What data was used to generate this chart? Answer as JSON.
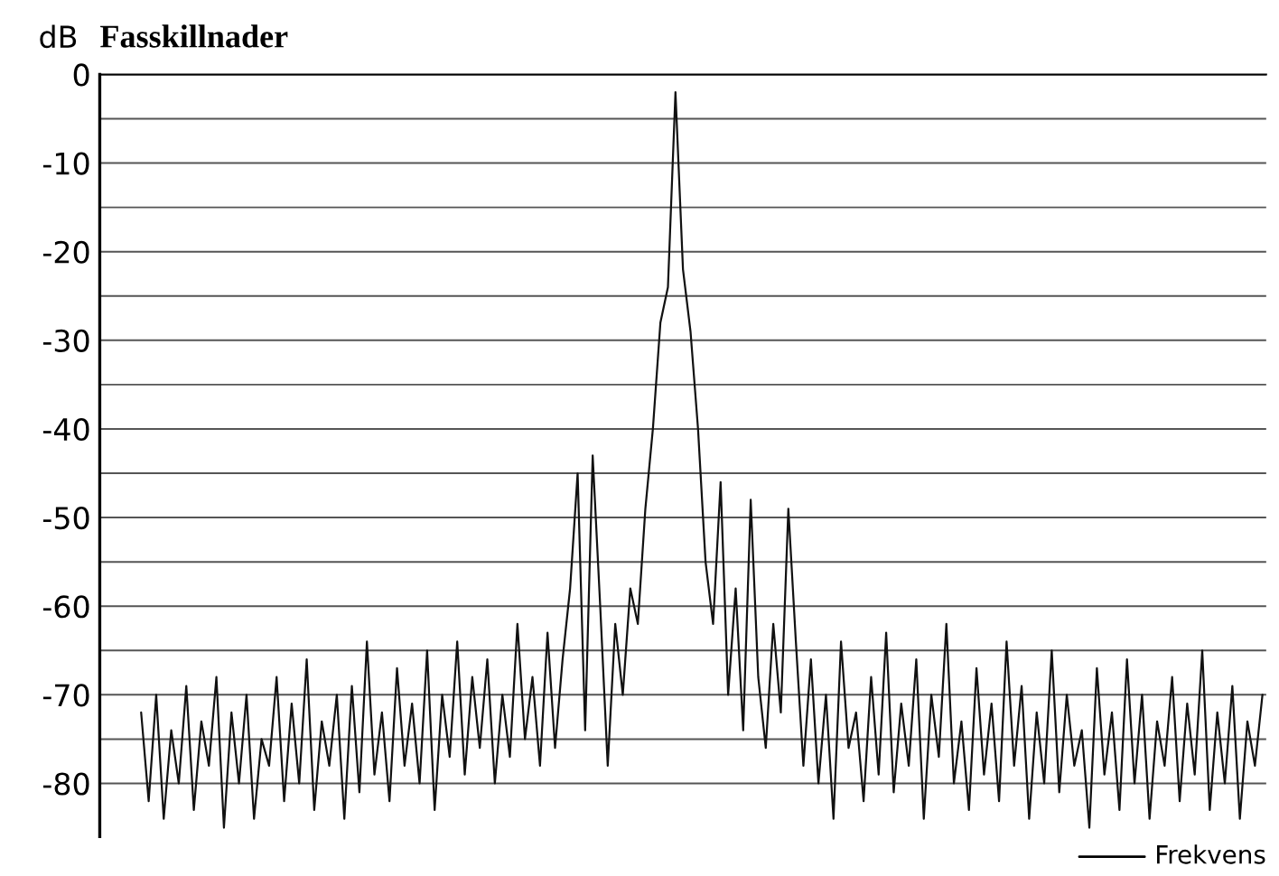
{
  "chart_data": {
    "type": "line",
    "title": "Fasskillnader",
    "ylabel": "dB",
    "annotations": [
      "Frekvens"
    ],
    "categories": [
      null,
      null,
      null,
      null,
      null,
      null,
      null,
      null,
      null,
      null,
      null,
      null,
      null,
      null,
      null,
      null,
      null,
      null,
      null,
      null,
      null,
      null,
      null,
      null,
      null,
      null,
      null,
      null,
      null,
      null,
      null,
      null,
      null,
      null,
      null,
      null,
      null,
      null,
      null,
      null,
      null,
      null,
      null,
      null,
      null,
      null,
      null,
      null,
      null,
      null,
      null,
      null,
      null,
      null,
      null,
      null,
      null,
      null,
      null,
      null,
      null,
      null,
      null,
      null,
      null,
      null,
      null,
      null,
      null,
      null,
      null,
      null,
      null,
      null,
      null,
      null,
      null,
      null,
      null,
      null,
      null,
      null,
      null,
      null,
      null,
      null,
      null,
      null,
      null,
      null,
      null,
      null,
      null,
      null,
      null,
      null,
      null,
      null,
      null,
      null,
      null,
      null,
      null,
      null,
      null,
      null,
      null,
      null,
      null,
      null,
      null,
      null,
      null,
      null,
      null,
      null,
      null,
      null,
      null,
      null,
      null,
      null,
      null,
      null,
      null,
      null,
      null,
      null,
      null,
      null,
      null,
      null,
      null,
      null,
      null,
      null,
      null,
      null,
      null,
      null,
      null,
      null,
      null,
      null,
      null,
      null,
      null,
      null,
      null,
      null
    ],
    "series": [
      {
        "color": "#111111",
        "values": [
          -72,
          -82,
          -70,
          -84,
          -74,
          -80,
          -69,
          -83,
          -73,
          -78,
          -68,
          -85,
          -72,
          -80,
          -70,
          -84,
          -75,
          -78,
          -68,
          -82,
          -71,
          -80,
          -66,
          -83,
          -73,
          -78,
          -70,
          -84,
          -69,
          -81,
          -64,
          -79,
          -72,
          -82,
          -67,
          -78,
          -71,
          -80,
          -65,
          -83,
          -70,
          -77,
          -64,
          -79,
          -68,
          -76,
          -66,
          -80,
          -70,
          -77,
          -62,
          -75,
          -68,
          -78,
          -63,
          -76,
          -66,
          -58,
          -45,
          -74,
          -43,
          -60,
          -78,
          -62,
          -70,
          -58,
          -62,
          -49,
          -40,
          -28,
          -24,
          -2,
          -22,
          -29,
          -40,
          -55,
          -62,
          -46,
          -70,
          -58,
          -74,
          -48,
          -68,
          -76,
          -62,
          -72,
          -49,
          -64,
          -78,
          -66,
          -80,
          -70,
          -84,
          -64,
          -76,
          -72,
          -82,
          -68,
          -79,
          -63,
          -81,
          -71,
          -78,
          -66,
          -84,
          -70,
          -77,
          -62,
          -80,
          -73,
          -83,
          -67,
          -79,
          -71,
          -82,
          -64,
          -78,
          -69,
          -84,
          -72,
          -80,
          -65,
          -81,
          -70,
          -78,
          -74,
          -85,
          -67,
          -79,
          -72,
          -83,
          -66,
          -80,
          -70,
          -84,
          -73,
          -78,
          -68,
          -82,
          -71,
          -79,
          -65,
          -83,
          -72,
          -80,
          -69,
          -84,
          -73,
          -78,
          -70
        ]
      }
    ],
    "ylim": [
      -86,
      0
    ],
    "yticks": [
      0,
      {
        "value": -5,
        "label": null
      },
      -10,
      {
        "value": -15,
        "label": null
      },
      -20,
      {
        "value": -25,
        "label": null
      },
      -30,
      {
        "value": -35,
        "label": null
      },
      -40,
      {
        "value": -45,
        "label": null
      },
      -50,
      {
        "value": -55,
        "label": null
      },
      -60,
      {
        "value": -65,
        "label": null
      },
      -70,
      {
        "value": -75,
        "label": null
      },
      -80
    ],
    "tick_labels": "y",
    "grid": "y",
    "marker": "none",
    "line_style": "solid"
  }
}
